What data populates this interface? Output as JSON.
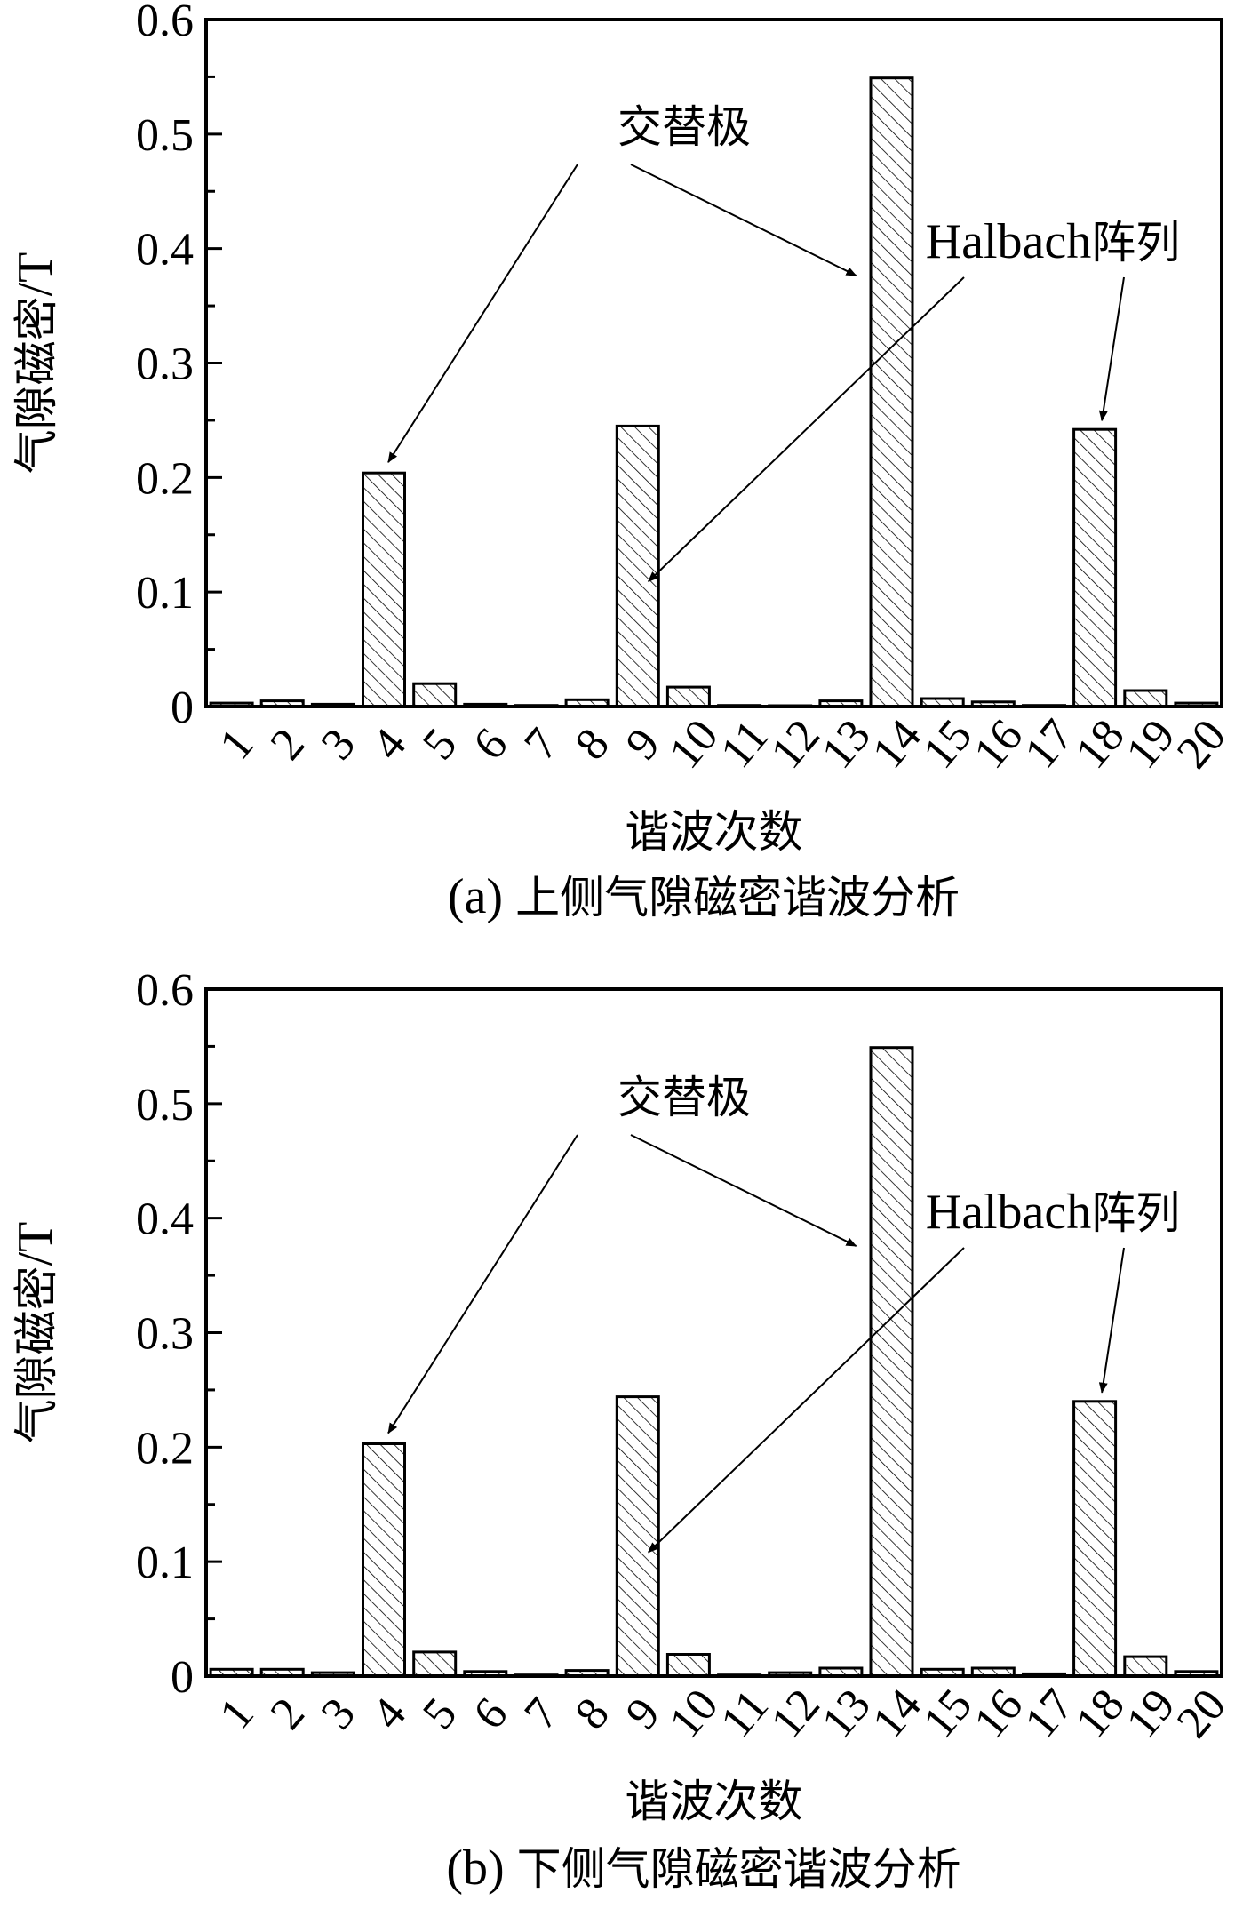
{
  "chart_data": [
    {
      "type": "bar",
      "caption": "(a) 上侧气隙磁密谐波分析",
      "xlabel": "谐波次数",
      "ylabel": "气隙磁密/T",
      "ylim": [
        0,
        0.6
      ],
      "yticks": [
        "0",
        "0.1",
        "0.2",
        "0.3",
        "0.4",
        "0.5",
        "0.6"
      ],
      "categories": [
        "1",
        "2",
        "3",
        "4",
        "5",
        "6",
        "7",
        "8",
        "9",
        "10",
        "11",
        "12",
        "13",
        "14",
        "15",
        "16",
        "17",
        "18",
        "19",
        "20"
      ],
      "values": [
        0.003,
        0.005,
        0.002,
        0.204,
        0.02,
        0.002,
        0.001,
        0.006,
        0.245,
        0.017,
        0.001,
        0.0,
        0.005,
        0.549,
        0.007,
        0.004,
        0.001,
        0.242,
        0.014,
        0.003
      ],
      "annotations": [
        {
          "text": "交替极",
          "targets": [
            "4",
            "14"
          ]
        },
        {
          "text": "Halbach阵列",
          "targets": [
            "9",
            "18"
          ]
        }
      ],
      "grid": false
    },
    {
      "type": "bar",
      "caption": "(b) 下侧气隙磁密谐波分析",
      "xlabel": "谐波次数",
      "ylabel": "气隙磁密/T",
      "ylim": [
        0,
        0.6
      ],
      "yticks": [
        "0",
        "0.1",
        "0.2",
        "0.3",
        "0.4",
        "0.5",
        "0.6"
      ],
      "categories": [
        "1",
        "2",
        "3",
        "4",
        "5",
        "6",
        "7",
        "8",
        "9",
        "10",
        "11",
        "12",
        "13",
        "14",
        "15",
        "16",
        "17",
        "18",
        "19",
        "20"
      ],
      "values": [
        0.006,
        0.006,
        0.003,
        0.203,
        0.021,
        0.004,
        0.001,
        0.005,
        0.244,
        0.019,
        0.001,
        0.003,
        0.007,
        0.549,
        0.006,
        0.007,
        0.002,
        0.24,
        0.017,
        0.004
      ],
      "annotations": [
        {
          "text": "交替极",
          "targets": [
            "4",
            "14"
          ]
        },
        {
          "text": "Halbach阵列",
          "targets": [
            "9",
            "18"
          ]
        }
      ],
      "grid": false
    }
  ]
}
